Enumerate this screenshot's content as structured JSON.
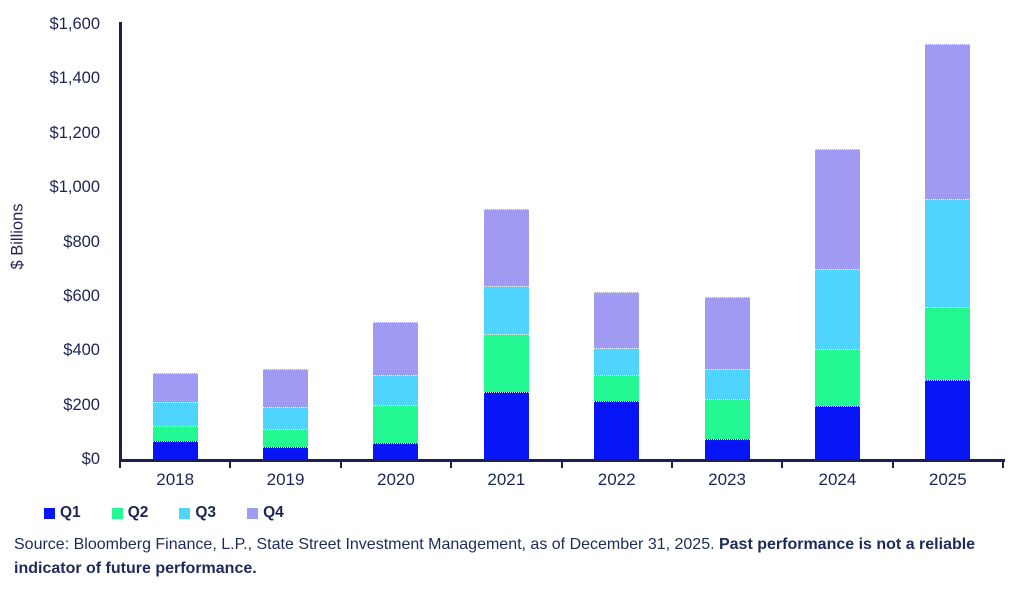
{
  "chart_data": {
    "type": "bar",
    "stacked": true,
    "title": "",
    "xlabel": "",
    "ylabel": "$ Billions",
    "ylim": [
      0,
      1600
    ],
    "grid": false,
    "legend_position": "bottom-left",
    "categories": [
      "2018",
      "2019",
      "2020",
      "2021",
      "2022",
      "2023",
      "2024",
      "2025"
    ],
    "series": [
      {
        "name": "Q1",
        "color": "#0715F7",
        "values": [
          65,
          45,
          60,
          245,
          215,
          75,
          195,
          290
        ]
      },
      {
        "name": "Q2",
        "color": "#23F893",
        "values": [
          55,
          65,
          140,
          215,
          95,
          145,
          210,
          270
        ]
      },
      {
        "name": "Q3",
        "color": "#4FD4FD",
        "values": [
          90,
          80,
          110,
          175,
          100,
          110,
          295,
          395
        ]
      },
      {
        "name": "Q4",
        "color": "#A19AF3",
        "values": [
          105,
          140,
          195,
          285,
          205,
          265,
          440,
          570
        ]
      }
    ],
    "yticks": [
      {
        "label": "$0",
        "value": 0
      },
      {
        "label": "$200",
        "value": 200
      },
      {
        "label": "$400",
        "value": 400
      },
      {
        "label": "$600",
        "value": 600
      },
      {
        "label": "$800",
        "value": 800
      },
      {
        "label": "$1,000",
        "value": 1000
      },
      {
        "label": "$1,200",
        "value": 1200
      },
      {
        "label": "$1,400",
        "value": 1400
      },
      {
        "label": "$1,600",
        "value": 1600
      }
    ]
  },
  "source": {
    "normal": "Source: Bloomberg Finance, L.P., State Street Investment Management, as of December 31, 2025. ",
    "bold": "Past performance is not a reliable indicator of future performance."
  },
  "colors": {
    "axis": "#1b2051",
    "text": "#1f2458"
  }
}
